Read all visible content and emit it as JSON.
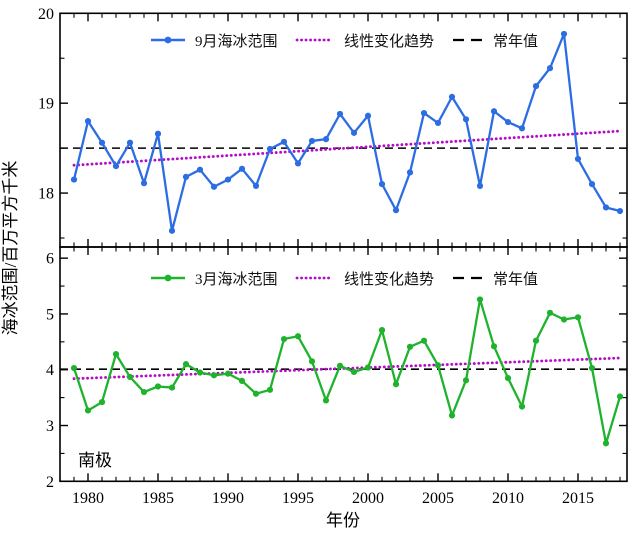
{
  "labels": {
    "ylabel": "海冰范围/百万平方千米",
    "xlabel": "年份",
    "region": "南极"
  },
  "legend": {
    "trend_label": "线性变化趋势",
    "normal_label": "常年值"
  },
  "colors": {
    "september": "#2d6de3",
    "march": "#1fb32d",
    "trend": "#b50ac8",
    "normal": "#000000"
  },
  "x_axis": {
    "range": [
      1978,
      2018.5
    ],
    "major_ticks": [
      1980,
      1985,
      1990,
      1995,
      2000,
      2005,
      2010,
      2015
    ],
    "minor_tick_interval": 1
  },
  "chart_data": [
    {
      "type": "line",
      "panel": "top",
      "series_label": "9月海冰范围",
      "color_key": "september",
      "legend_position": "top",
      "grid": false,
      "ylim": [
        17.4,
        20.0
      ],
      "yticks": [
        18,
        19,
        20
      ],
      "minor_ytick_interval": 0.5,
      "normal_value": 18.5,
      "trend_line": {
        "start_value": 18.31,
        "end_value": 18.69
      },
      "x": [
        1979,
        1980,
        1981,
        1982,
        1983,
        1984,
        1985,
        1986,
        1987,
        1988,
        1989,
        1990,
        1991,
        1992,
        1993,
        1994,
        1995,
        1996,
        1997,
        1998,
        1999,
        2000,
        2001,
        2002,
        2003,
        2004,
        2005,
        2006,
        2007,
        2008,
        2009,
        2010,
        2011,
        2012,
        2013,
        2014,
        2015,
        2016,
        2017,
        2018
      ],
      "values": [
        18.15,
        18.8,
        18.56,
        18.3,
        18.56,
        18.11,
        18.66,
        17.58,
        18.18,
        18.26,
        18.07,
        18.15,
        18.27,
        18.08,
        18.49,
        18.57,
        18.33,
        18.58,
        18.6,
        18.88,
        18.67,
        18.86,
        18.1,
        17.81,
        18.23,
        18.89,
        18.78,
        19.07,
        18.82,
        18.08,
        18.91,
        18.79,
        18.72,
        19.19,
        19.39,
        19.77,
        18.38,
        18.1,
        17.84,
        17.8
      ]
    },
    {
      "type": "line",
      "panel": "bottom",
      "series_label": "3月海冰范围",
      "color_key": "march",
      "legend_position": "top",
      "grid": false,
      "ylim": [
        2.0,
        6.2
      ],
      "yticks": [
        2,
        3,
        4,
        5,
        6
      ],
      "minor_ytick_interval": 0.5,
      "normal_value": 4.01,
      "trend_line": {
        "start_value": 3.84,
        "end_value": 4.21
      },
      "x": [
        1979,
        1980,
        1981,
        1982,
        1983,
        1984,
        1985,
        1986,
        1987,
        1988,
        1989,
        1990,
        1991,
        1992,
        1993,
        1994,
        1995,
        1996,
        1997,
        1998,
        1999,
        2000,
        2001,
        2002,
        2003,
        2004,
        2005,
        2006,
        2007,
        2008,
        2009,
        2010,
        2011,
        2012,
        2013,
        2014,
        2015,
        2016,
        2017,
        2018
      ],
      "values": [
        4.03,
        3.27,
        3.42,
        4.28,
        3.87,
        3.6,
        3.7,
        3.68,
        4.1,
        3.95,
        3.9,
        3.93,
        3.8,
        3.57,
        3.64,
        4.55,
        4.6,
        4.15,
        3.45,
        4.07,
        3.96,
        4.04,
        4.71,
        3.74,
        4.41,
        4.52,
        4.08,
        3.18,
        3.81,
        5.26,
        4.42,
        3.85,
        3.34,
        4.52,
        5.02,
        4.9,
        4.94,
        4.03,
        2.68,
        3.52
      ]
    }
  ]
}
